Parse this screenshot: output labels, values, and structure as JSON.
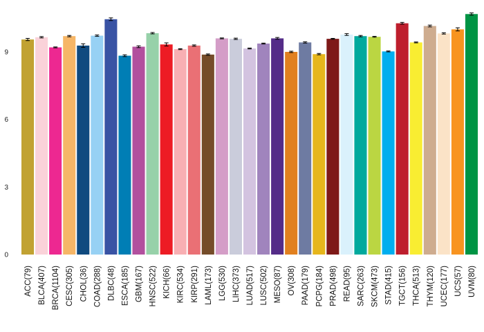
{
  "chart_data": {
    "type": "bar",
    "categories": [
      "ACC(79)",
      "BLCA(407)",
      "BRCA(1104)",
      "CESC(305)",
      "CHOL(36)",
      "COAD(288)",
      "DLBC(48)",
      "ESCA(185)",
      "GBM(167)",
      "HNSC(522)",
      "KICH(66)",
      "KIRC(534)",
      "KIRP(291)",
      "LAML(173)",
      "LGG(530)",
      "LIHC(373)",
      "LUAD(517)",
      "LUSC(502)",
      "MESO(87)",
      "OV(308)",
      "PAAD(179)",
      "PCPG(184)",
      "PRAD(498)",
      "READ(95)",
      "SARC(263)",
      "SKCM(473)",
      "STAD(415)",
      "TGCT(156)",
      "THCA(513)",
      "THYM(120)",
      "UCEC(177)",
      "UCS(57)",
      "UVM(80)"
    ],
    "values": [
      9.55,
      9.65,
      9.2,
      9.7,
      9.28,
      9.72,
      10.45,
      8.83,
      9.23,
      9.83,
      9.33,
      9.12,
      9.28,
      8.88,
      9.6,
      9.58,
      9.15,
      9.37,
      9.6,
      9.0,
      9.42,
      8.9,
      9.58,
      9.77,
      9.7,
      9.67,
      9.02,
      10.27,
      9.42,
      10.15,
      9.82,
      10.0,
      10.68
    ],
    "errors": [
      0.05,
      0.03,
      0.02,
      0.03,
      0.08,
      0.03,
      0.06,
      0.04,
      0.04,
      0.03,
      0.07,
      0.02,
      0.03,
      0.03,
      0.02,
      0.03,
      0.02,
      0.02,
      0.04,
      0.03,
      0.03,
      0.03,
      0.02,
      0.04,
      0.03,
      0.02,
      0.02,
      0.04,
      0.02,
      0.04,
      0.03,
      0.07,
      0.05
    ],
    "colors": [
      "#C1A232",
      "#FAD2D9",
      "#ED2891",
      "#F6B667",
      "#104A7F",
      "#97D1F4",
      "#3953A4",
      "#007EB5",
      "#B2509E",
      "#97D1A9",
      "#ED1C24",
      "#F8AFB3",
      "#EA7075",
      "#754C29",
      "#D49DC7",
      "#CACCDB",
      "#D3C3E0",
      "#A084BD",
      "#542C88",
      "#E1801F",
      "#6E7BA2",
      "#E6B61C",
      "#7E1918",
      "#DAF1FC",
      "#00A99D",
      "#BBD642",
      "#00AEEF",
      "#BE1E2D",
      "#F9ED32",
      "#CEAC8F",
      "#FBE3C7",
      "#F89420",
      "#009444"
    ],
    "yticks": [
      "0",
      "3",
      "6",
      "9"
    ],
    "ylim": [
      0,
      11
    ],
    "title": "",
    "xlabel": "",
    "ylabel": "",
    "grid": false
  }
}
